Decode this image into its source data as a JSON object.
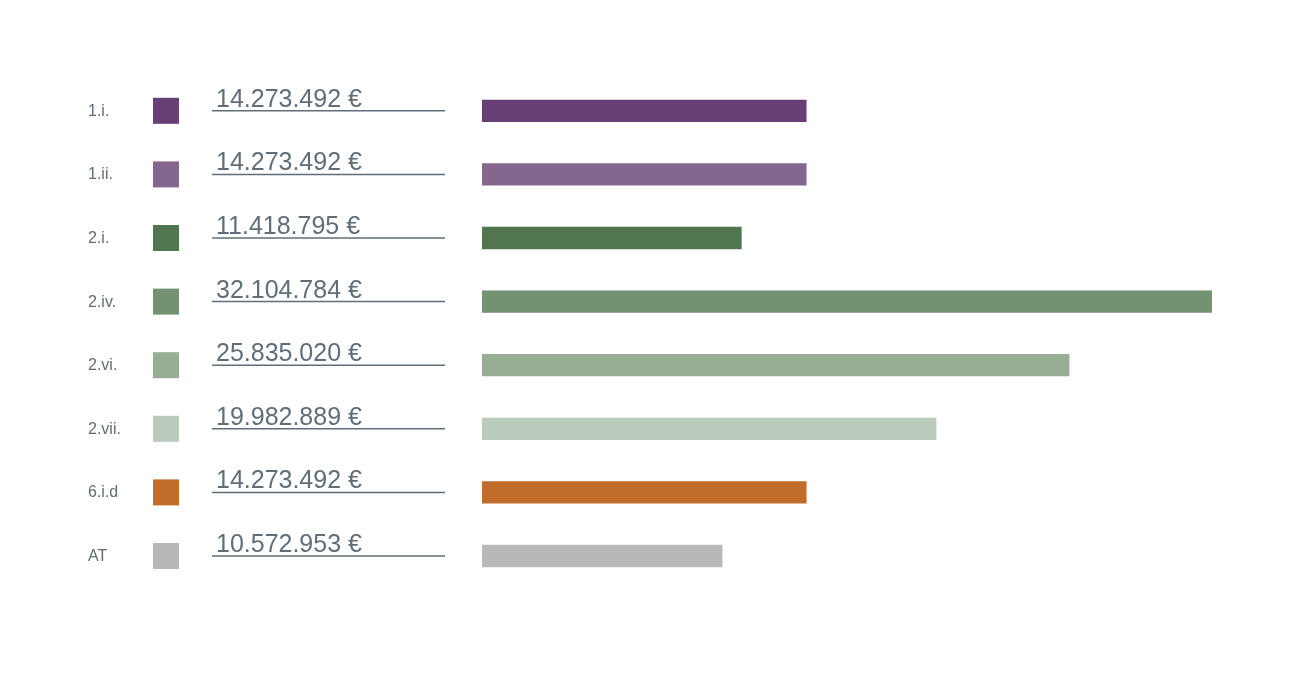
{
  "chart_data": {
    "type": "bar",
    "orientation": "horizontal",
    "categories": [
      "1.i.",
      "1.ii.",
      "2.i.",
      "2.iv.",
      "2.vi.",
      "2.vii.",
      "6.i.d",
      "AT"
    ],
    "values": [
      14273492,
      14273492,
      11418795,
      32104784,
      25835020,
      19982889,
      14273492,
      10572953
    ],
    "colors": [
      "#673f75",
      "#85668f",
      "#50754f",
      "#739271",
      "#97ae95",
      "#bacabb",
      "#c26c2b",
      "#b8b8b8"
    ],
    "value_labels": [
      "14.273.492 €",
      "14.273.492 €",
      "11.418.795 €",
      "32.104.784 €",
      "25.835.020 €",
      "19.982.889 €",
      "14.273.492 €",
      "10.572.953  €"
    ]
  }
}
